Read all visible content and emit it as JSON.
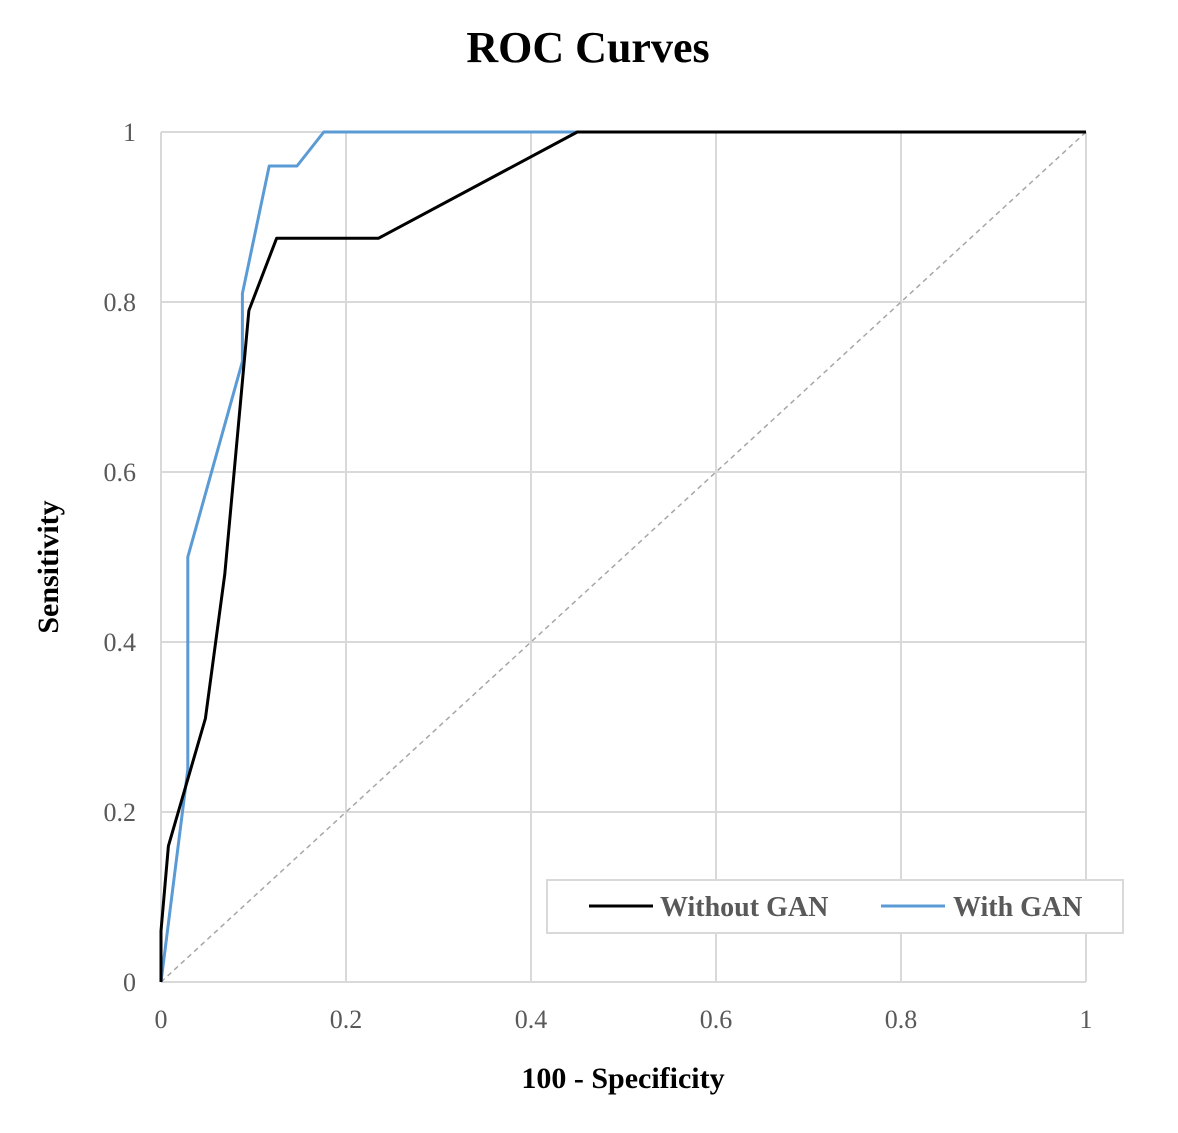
{
  "chart_data": {
    "type": "line",
    "title": "ROC Curves",
    "xlabel": "100 - Specificity",
    "ylabel": "Sensitivity",
    "xlim": [
      0,
      1
    ],
    "ylim": [
      0,
      1
    ],
    "x_ticks": [
      "0",
      "0.2",
      "0.4",
      "0.6",
      "0.8",
      "1"
    ],
    "y_ticks": [
      "0",
      "0.2",
      "0.4",
      "0.6",
      "0.8",
      "1"
    ],
    "grid": true,
    "legend_position": "bottom-right",
    "diagonal": {
      "color": "#A6A6A6",
      "style": "dashed",
      "from": [
        0,
        0
      ],
      "to": [
        1,
        1
      ]
    },
    "series": [
      {
        "name": "Without GAN",
        "color": "#000000",
        "points": [
          [
            0,
            0
          ],
          [
            0,
            0.06
          ],
          [
            0.008,
            0.16
          ],
          [
            0.048,
            0.31
          ],
          [
            0.069,
            0.48
          ],
          [
            0.095,
            0.79
          ],
          [
            0.125,
            0.875
          ],
          [
            0.235,
            0.875
          ],
          [
            0.45,
            1.0
          ],
          [
            1.0,
            1.0
          ]
        ]
      },
      {
        "name": "With GAN",
        "color": "#5B9BD5",
        "points": [
          [
            0,
            0
          ],
          [
            0.029,
            0.25
          ],
          [
            0.029,
            0.5
          ],
          [
            0.088,
            0.73
          ],
          [
            0.088,
            0.81
          ],
          [
            0.117,
            0.96
          ],
          [
            0.147,
            0.96
          ],
          [
            0.176,
            1.0
          ],
          [
            1.0,
            1.0
          ]
        ]
      }
    ]
  }
}
